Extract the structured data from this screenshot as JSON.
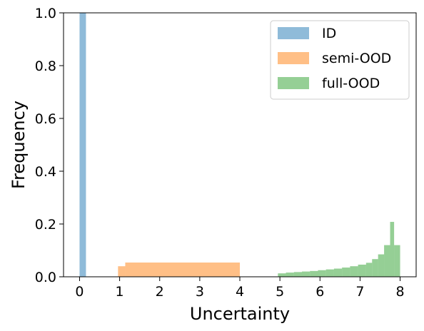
{
  "chart_data": {
    "type": "bar",
    "subtype": "histogram",
    "xlabel": "Uncertainty",
    "ylabel": "Frequency",
    "xlim": [
      -0.4,
      8.4
    ],
    "ylim": [
      0,
      1.0
    ],
    "xticks": [
      "0",
      "1",
      "2",
      "3",
      "4",
      "5",
      "6",
      "7",
      "8"
    ],
    "yticks": [
      "0.0",
      "0.2",
      "0.4",
      "0.6",
      "0.8",
      "1.0"
    ],
    "legend_position": "top-right",
    "series": [
      {
        "name": "ID",
        "color": "#1f77b4",
        "alpha": 0.5,
        "bins": [
          [
            0.0,
            0.16,
            1.0
          ]
        ]
      },
      {
        "name": "semi-OOD",
        "color": "#ff7f0e",
        "alpha": 0.5,
        "bins": [
          [
            0.96,
            1.14,
            0.04
          ],
          [
            1.14,
            4.0,
            0.054
          ]
        ]
      },
      {
        "name": "full-OOD",
        "color": "#2ca02c",
        "alpha": 0.5,
        "bins": [
          [
            4.95,
            5.15,
            0.013
          ],
          [
            5.15,
            5.35,
            0.016
          ],
          [
            5.35,
            5.55,
            0.018
          ],
          [
            5.55,
            5.75,
            0.02
          ],
          [
            5.75,
            5.95,
            0.022
          ],
          [
            5.95,
            6.15,
            0.025
          ],
          [
            6.15,
            6.35,
            0.028
          ],
          [
            6.35,
            6.55,
            0.031
          ],
          [
            6.55,
            6.75,
            0.035
          ],
          [
            6.75,
            6.95,
            0.04
          ],
          [
            6.95,
            7.15,
            0.046
          ],
          [
            7.15,
            7.3,
            0.053
          ],
          [
            7.3,
            7.45,
            0.067
          ],
          [
            7.45,
            7.6,
            0.085
          ],
          [
            7.6,
            7.75,
            0.12
          ],
          [
            7.75,
            7.85,
            0.208
          ],
          [
            7.85,
            8.0,
            0.12
          ]
        ]
      }
    ]
  }
}
